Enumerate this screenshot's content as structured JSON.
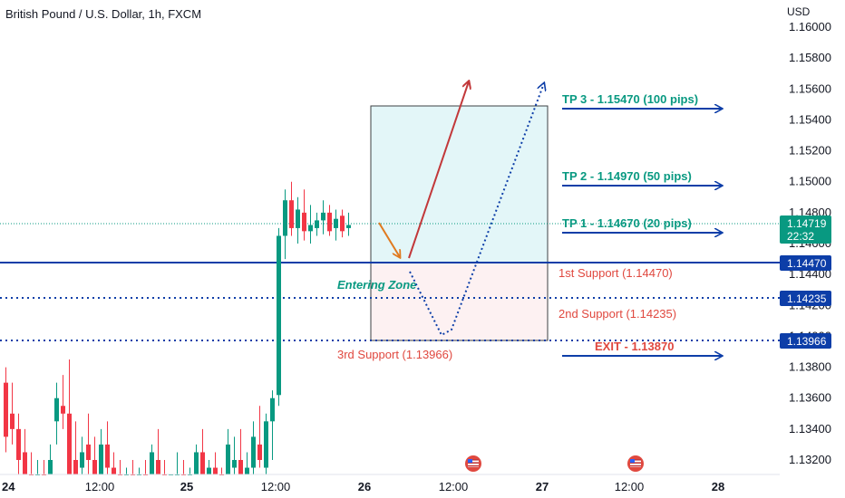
{
  "header": {
    "symbol_title": "British Pound / U.S. Dollar, 1h, FXCM",
    "currency": "USD"
  },
  "colors": {
    "bull": "#089981",
    "bear": "#f23645",
    "accent_blue": "#0d3ea8",
    "target_green": "#089981",
    "support_red": "#e0483f",
    "profit_zone": "#e3f6f8",
    "loss_zone": "#fdf1f2",
    "last_price_tag": "#089981"
  },
  "icons": {
    "event_marker": "us-flag-icon"
  },
  "chart_data": {
    "type": "candlestick",
    "title": "British Pound / U.S. Dollar, 1h, FXCM",
    "ylabel": "USD",
    "ylim": [
      1.131,
      1.161
    ],
    "y_ticks": [
      "1.16000",
      "1.15800",
      "1.15600",
      "1.15400",
      "1.15200",
      "1.15000",
      "1.14800",
      "1.14600",
      "1.14400",
      "1.14200",
      "1.14000",
      "1.13800",
      "1.13600",
      "1.13400",
      "1.13200"
    ],
    "x_ticks": [
      "24",
      "12:00",
      "25",
      "12:00",
      "26",
      "12:00",
      "27",
      "12:00",
      "28"
    ],
    "candles": [
      {
        "o": 1.137,
        "h": 1.138,
        "l": 1.1325,
        "c": 1.1335
      },
      {
        "o": 1.135,
        "h": 1.137,
        "l": 1.133,
        "c": 1.134
      },
      {
        "o": 1.134,
        "h": 1.135,
        "l": 1.1305,
        "c": 1.132
      },
      {
        "o": 1.1325,
        "h": 1.134,
        "l": 1.13,
        "c": 1.131
      },
      {
        "o": 1.131,
        "h": 1.1325,
        "l": 1.13,
        "c": 1.1305
      },
      {
        "o": 1.1305,
        "h": 1.132,
        "l": 1.1295,
        "c": 1.131
      },
      {
        "o": 1.131,
        "h": 1.132,
        "l": 1.129,
        "c": 1.1295
      },
      {
        "o": 1.13,
        "h": 1.133,
        "l": 1.129,
        "c": 1.132
      },
      {
        "o": 1.1345,
        "h": 1.137,
        "l": 1.133,
        "c": 1.136
      },
      {
        "o": 1.1355,
        "h": 1.1375,
        "l": 1.134,
        "c": 1.135
      },
      {
        "o": 1.135,
        "h": 1.1385,
        "l": 1.13,
        "c": 1.131
      },
      {
        "o": 1.132,
        "h": 1.1345,
        "l": 1.1305,
        "c": 1.131
      },
      {
        "o": 1.1315,
        "h": 1.1335,
        "l": 1.13,
        "c": 1.1325
      },
      {
        "o": 1.133,
        "h": 1.135,
        "l": 1.131,
        "c": 1.132
      },
      {
        "o": 1.132,
        "h": 1.1335,
        "l": 1.13,
        "c": 1.1305
      },
      {
        "o": 1.131,
        "h": 1.134,
        "l": 1.1295,
        "c": 1.133
      },
      {
        "o": 1.133,
        "h": 1.1345,
        "l": 1.131,
        "c": 1.1315
      },
      {
        "o": 1.1315,
        "h": 1.1325,
        "l": 1.13,
        "c": 1.131
      },
      {
        "o": 1.1305,
        "h": 1.132,
        "l": 1.1295,
        "c": 1.13
      },
      {
        "o": 1.13,
        "h": 1.1315,
        "l": 1.129,
        "c": 1.131
      },
      {
        "o": 1.131,
        "h": 1.132,
        "l": 1.1295,
        "c": 1.13
      },
      {
        "o": 1.13,
        "h": 1.1315,
        "l": 1.129,
        "c": 1.1305
      },
      {
        "o": 1.1305,
        "h": 1.132,
        "l": 1.129,
        "c": 1.13
      },
      {
        "o": 1.13,
        "h": 1.133,
        "l": 1.129,
        "c": 1.1325
      },
      {
        "o": 1.132,
        "h": 1.134,
        "l": 1.13,
        "c": 1.131
      },
      {
        "o": 1.131,
        "h": 1.132,
        "l": 1.1295,
        "c": 1.13
      },
      {
        "o": 1.13,
        "h": 1.131,
        "l": 1.129,
        "c": 1.1305
      },
      {
        "o": 1.1305,
        "h": 1.1325,
        "l": 1.1295,
        "c": 1.131
      },
      {
        "o": 1.131,
        "h": 1.132,
        "l": 1.1295,
        "c": 1.13
      },
      {
        "o": 1.13,
        "h": 1.1315,
        "l": 1.129,
        "c": 1.1305
      },
      {
        "o": 1.1305,
        "h": 1.133,
        "l": 1.1295,
        "c": 1.1325
      },
      {
        "o": 1.1325,
        "h": 1.134,
        "l": 1.13,
        "c": 1.131
      },
      {
        "o": 1.1305,
        "h": 1.132,
        "l": 1.1295,
        "c": 1.1315
      },
      {
        "o": 1.1315,
        "h": 1.1325,
        "l": 1.13,
        "c": 1.1305
      },
      {
        "o": 1.1305,
        "h": 1.1315,
        "l": 1.1295,
        "c": 1.13
      },
      {
        "o": 1.131,
        "h": 1.134,
        "l": 1.13,
        "c": 1.133
      },
      {
        "o": 1.1315,
        "h": 1.1335,
        "l": 1.13,
        "c": 1.132
      },
      {
        "o": 1.132,
        "h": 1.134,
        "l": 1.1295,
        "c": 1.1305
      },
      {
        "o": 1.13,
        "h": 1.1325,
        "l": 1.129,
        "c": 1.1315
      },
      {
        "o": 1.1315,
        "h": 1.1345,
        "l": 1.13,
        "c": 1.1335
      },
      {
        "o": 1.133,
        "h": 1.1355,
        "l": 1.1315,
        "c": 1.132
      },
      {
        "o": 1.1315,
        "h": 1.135,
        "l": 1.1295,
        "c": 1.1345
      },
      {
        "o": 1.1345,
        "h": 1.1365,
        "l": 1.132,
        "c": 1.136
      },
      {
        "o": 1.1362,
        "h": 1.147,
        "l": 1.1355,
        "c": 1.1465
      },
      {
        "o": 1.1465,
        "h": 1.1495,
        "l": 1.145,
        "c": 1.1488
      },
      {
        "o": 1.1488,
        "h": 1.15,
        "l": 1.1465,
        "c": 1.147
      },
      {
        "o": 1.147,
        "h": 1.149,
        "l": 1.146,
        "c": 1.1482
      },
      {
        "o": 1.148,
        "h": 1.1495,
        "l": 1.1462,
        "c": 1.1468
      },
      {
        "o": 1.1468,
        "h": 1.1485,
        "l": 1.146,
        "c": 1.1472
      },
      {
        "o": 1.147,
        "h": 1.148,
        "l": 1.1465,
        "c": 1.1475
      },
      {
        "o": 1.1475,
        "h": 1.1488,
        "l": 1.1466,
        "c": 1.148
      },
      {
        "o": 1.148,
        "h": 1.1485,
        "l": 1.1465,
        "c": 1.1468
      },
      {
        "o": 1.147,
        "h": 1.1482,
        "l": 1.1462,
        "c": 1.1476
      },
      {
        "o": 1.1478,
        "h": 1.1482,
        "l": 1.1464,
        "c": 1.1468
      },
      {
        "o": 1.147,
        "h": 1.148,
        "l": 1.1465,
        "c": 1.1472
      }
    ],
    "last_price": {
      "value": "1.14719",
      "countdown": "22:32",
      "level": 1.14719
    },
    "levels": [
      {
        "label": "1.14470",
        "value": 1.1447,
        "style": "solid"
      },
      {
        "label": "1.14235",
        "value": 1.14235,
        "style": "dotted"
      },
      {
        "label": "1.13966",
        "value": 1.13966,
        "style": "dotted"
      }
    ],
    "position": {
      "entry": 1.1447,
      "target": 1.1549,
      "stop": 1.13966
    },
    "targets": [
      {
        "label": "TP 3 - 1.15470 (100 pips)",
        "value": 1.1547
      },
      {
        "label": "TP 2 - 1.14970 (50 pips)",
        "value": 1.1497
      },
      {
        "label": "TP 1 - 1.14670 (20 pips)",
        "value": 1.1467
      }
    ],
    "supports": [
      {
        "label": "1st Support (1.14470)",
        "value": 1.1447
      },
      {
        "label": "2nd Support (1.14235)",
        "value": 1.14235
      },
      {
        "label": "3rd Support (1.13966)",
        "value": 1.13966
      }
    ],
    "exit": {
      "label": "EXIT - 1.13870",
      "value": 1.1387
    },
    "zone_label": "Entering Zone"
  }
}
